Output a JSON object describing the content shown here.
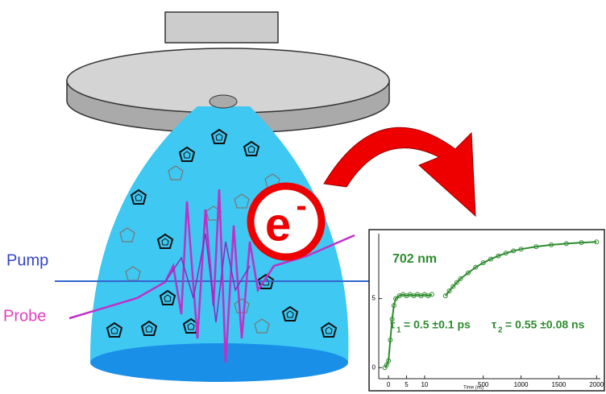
{
  "labels": {
    "pump": "Pump",
    "probe": "Probe",
    "electron": "e",
    "electron_charge": "-"
  },
  "inset": {
    "title": "702 nm",
    "tau1": {
      "symbol": "τ",
      "sub": "1",
      "text": "= 0.5 ±0.1 ps"
    },
    "tau2": {
      "symbol": "τ",
      "sub": "2",
      "text": "= 0.55 ±0.08 ns"
    },
    "x_label": "Time (ns)",
    "color": "#2e8b2e",
    "ylim": [
      -0.8,
      9.7
    ],
    "yticks": [
      0,
      5
    ],
    "panels": [
      {
        "xlim": [
          -2.7,
          14.7
        ],
        "xticks": [
          0,
          5,
          10
        ],
        "x": [
          -1,
          -0.5,
          0,
          0.5,
          1,
          1.5,
          2,
          3,
          4,
          5,
          6,
          7,
          8,
          9,
          10,
          11,
          12
        ],
        "y": [
          0,
          0.2,
          0.5,
          2,
          3.5,
          4.5,
          5,
          5.2,
          5.3,
          5.2,
          5.3,
          5.2,
          5.3,
          5.2,
          5.3,
          5.2,
          5.3
        ]
      },
      {
        "xlim": [
          -30,
          2050
        ],
        "xticks": [
          500,
          1000,
          1500,
          2000
        ],
        "x": [
          0,
          50,
          100,
          150,
          200,
          300,
          400,
          500,
          600,
          700,
          800,
          900,
          1000,
          1200,
          1400,
          1600,
          1800,
          2000
        ],
        "y": [
          5.2,
          5.55,
          5.87,
          6.17,
          6.44,
          6.86,
          7.27,
          7.59,
          7.86,
          8.09,
          8.29,
          8.45,
          8.58,
          8.76,
          8.89,
          8.98,
          9.05,
          9.1
        ]
      }
    ]
  }
}
